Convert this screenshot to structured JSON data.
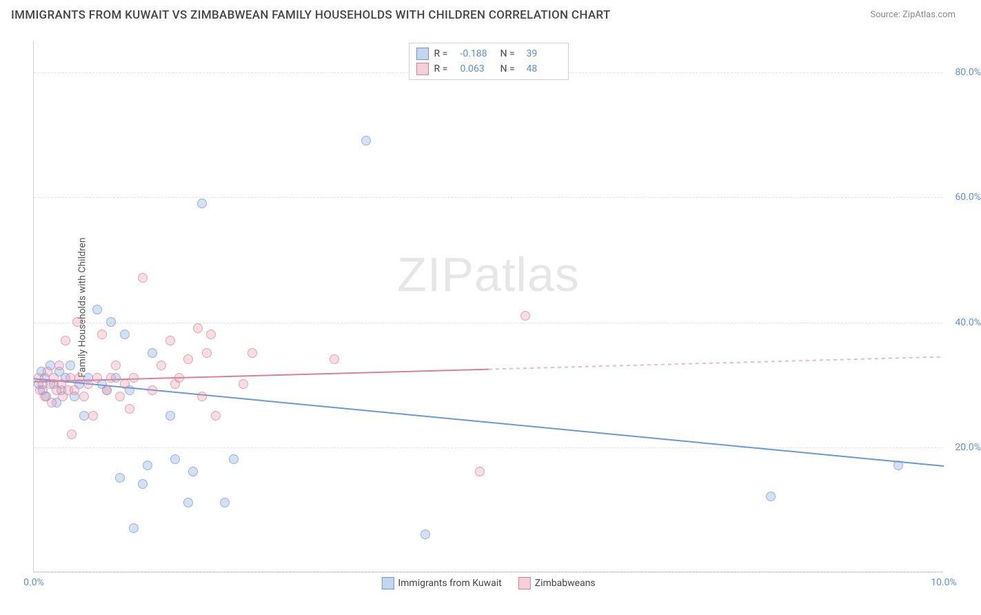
{
  "title": "IMMIGRANTS FROM KUWAIT VS ZIMBABWEAN FAMILY HOUSEHOLDS WITH CHILDREN CORRELATION CHART",
  "source": "Source: ZipAtlas.com",
  "watermark_bold": "ZIP",
  "watermark_thin": "atlas",
  "y_axis_title": "Family Households with Children",
  "chart": {
    "type": "scatter",
    "xlim": [
      0,
      10
    ],
    "ylim": [
      0,
      85
    ],
    "x_ticks": [
      {
        "v": 0,
        "label": "0.0%"
      },
      {
        "v": 10,
        "label": "10.0%"
      }
    ],
    "y_ticks": [
      {
        "v": 20,
        "label": "20.0%"
      },
      {
        "v": 40,
        "label": "40.0%"
      },
      {
        "v": 60,
        "label": "60.0%"
      },
      {
        "v": 80,
        "label": "80.0%"
      }
    ],
    "grid_y": [
      0,
      20,
      40,
      60,
      80
    ],
    "grid_color": "#e2e2e2",
    "background_color": "#ffffff",
    "series": [
      {
        "name": "Immigrants from Kuwait",
        "color_fill": "rgba(120,165,220,0.45)",
        "color_stroke": "#6a98d0",
        "class": "blue",
        "R": "-0.188",
        "N": "39",
        "trend": {
          "x1": 0,
          "y1": 31,
          "x2": 10,
          "y2": 17,
          "solid_to_x": 10
        },
        "points": [
          {
            "x": 0.05,
            "y": 30
          },
          {
            "x": 0.08,
            "y": 32
          },
          {
            "x": 0.1,
            "y": 29
          },
          {
            "x": 0.12,
            "y": 31
          },
          {
            "x": 0.14,
            "y": 28
          },
          {
            "x": 0.18,
            "y": 33
          },
          {
            "x": 0.22,
            "y": 30
          },
          {
            "x": 0.25,
            "y": 27
          },
          {
            "x": 0.28,
            "y": 32
          },
          {
            "x": 0.3,
            "y": 29
          },
          {
            "x": 0.35,
            "y": 31
          },
          {
            "x": 0.4,
            "y": 33
          },
          {
            "x": 0.45,
            "y": 28
          },
          {
            "x": 0.5,
            "y": 30
          },
          {
            "x": 0.55,
            "y": 25
          },
          {
            "x": 0.6,
            "y": 31
          },
          {
            "x": 0.7,
            "y": 42
          },
          {
            "x": 0.75,
            "y": 30
          },
          {
            "x": 0.8,
            "y": 29
          },
          {
            "x": 0.85,
            "y": 40
          },
          {
            "x": 0.9,
            "y": 31
          },
          {
            "x": 0.95,
            "y": 15
          },
          {
            "x": 1.0,
            "y": 38
          },
          {
            "x": 1.05,
            "y": 29
          },
          {
            "x": 1.1,
            "y": 7
          },
          {
            "x": 1.2,
            "y": 14
          },
          {
            "x": 1.25,
            "y": 17
          },
          {
            "x": 1.3,
            "y": 35
          },
          {
            "x": 1.5,
            "y": 25
          },
          {
            "x": 1.55,
            "y": 18
          },
          {
            "x": 1.7,
            "y": 11
          },
          {
            "x": 1.75,
            "y": 16
          },
          {
            "x": 1.85,
            "y": 59
          },
          {
            "x": 2.1,
            "y": 11
          },
          {
            "x": 2.2,
            "y": 18
          },
          {
            "x": 3.65,
            "y": 69
          },
          {
            "x": 4.3,
            "y": 6
          },
          {
            "x": 8.1,
            "y": 12
          },
          {
            "x": 9.5,
            "y": 17
          }
        ]
      },
      {
        "name": "Zimbabweans",
        "color_fill": "rgba(235,150,170,0.45)",
        "color_stroke": "#db7f99",
        "class": "pink",
        "R": "0.063",
        "N": "48",
        "trend": {
          "x1": 0,
          "y1": 30.5,
          "x2": 10,
          "y2": 34.5,
          "solid_to_x": 5
        },
        "points": [
          {
            "x": 0.05,
            "y": 31
          },
          {
            "x": 0.07,
            "y": 29
          },
          {
            "x": 0.1,
            "y": 30
          },
          {
            "x": 0.12,
            "y": 28
          },
          {
            "x": 0.15,
            "y": 32
          },
          {
            "x": 0.18,
            "y": 30
          },
          {
            "x": 0.2,
            "y": 27
          },
          {
            "x": 0.22,
            "y": 31
          },
          {
            "x": 0.25,
            "y": 29
          },
          {
            "x": 0.28,
            "y": 33
          },
          {
            "x": 0.3,
            "y": 30
          },
          {
            "x": 0.32,
            "y": 28
          },
          {
            "x": 0.35,
            "y": 37
          },
          {
            "x": 0.38,
            "y": 29
          },
          {
            "x": 0.4,
            "y": 31
          },
          {
            "x": 0.42,
            "y": 22
          },
          {
            "x": 0.45,
            "y": 29
          },
          {
            "x": 0.48,
            "y": 40
          },
          {
            "x": 0.5,
            "y": 31
          },
          {
            "x": 0.55,
            "y": 28
          },
          {
            "x": 0.6,
            "y": 30
          },
          {
            "x": 0.65,
            "y": 25
          },
          {
            "x": 0.7,
            "y": 31
          },
          {
            "x": 0.75,
            "y": 38
          },
          {
            "x": 0.8,
            "y": 29
          },
          {
            "x": 0.85,
            "y": 31
          },
          {
            "x": 0.9,
            "y": 33
          },
          {
            "x": 0.95,
            "y": 28
          },
          {
            "x": 1.0,
            "y": 30
          },
          {
            "x": 1.05,
            "y": 26
          },
          {
            "x": 1.1,
            "y": 31
          },
          {
            "x": 1.2,
            "y": 47
          },
          {
            "x": 1.3,
            "y": 29
          },
          {
            "x": 1.4,
            "y": 33
          },
          {
            "x": 1.5,
            "y": 37
          },
          {
            "x": 1.55,
            "y": 30
          },
          {
            "x": 1.6,
            "y": 31
          },
          {
            "x": 1.7,
            "y": 34
          },
          {
            "x": 1.8,
            "y": 39
          },
          {
            "x": 1.85,
            "y": 28
          },
          {
            "x": 1.9,
            "y": 35
          },
          {
            "x": 1.95,
            "y": 38
          },
          {
            "x": 2.0,
            "y": 25
          },
          {
            "x": 2.3,
            "y": 30
          },
          {
            "x": 2.4,
            "y": 35
          },
          {
            "x": 3.3,
            "y": 34
          },
          {
            "x": 4.9,
            "y": 16
          },
          {
            "x": 5.4,
            "y": 41
          }
        ]
      }
    ]
  },
  "legend_top_label_R": "R =",
  "legend_top_label_N": "N ="
}
